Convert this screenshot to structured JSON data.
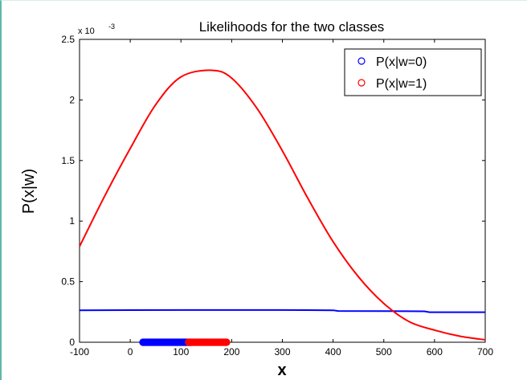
{
  "chart_data": {
    "type": "line",
    "title": "Likelihoods for the two classes",
    "xlabel": "x",
    "ylabel": "P(x|w)",
    "y_multiplier": "x 10",
    "y_exponent": "-3",
    "xlim": [
      -100,
      700
    ],
    "ylim": [
      0,
      2.5
    ],
    "x_ticks": [
      -100,
      0,
      100,
      200,
      300,
      400,
      500,
      600,
      700
    ],
    "x_tick_labels": [
      "-100",
      "0",
      "100",
      "200",
      "300",
      "400",
      "500",
      "600",
      "700"
    ],
    "y_ticks": [
      0,
      0.5,
      1,
      1.5,
      2,
      2.5
    ],
    "y_tick_labels": [
      "0",
      "0.5",
      "1",
      "1.5",
      "2",
      "2.5"
    ],
    "grid": false,
    "legend_position": "top-right",
    "series": [
      {
        "name": "P(x|w=0)",
        "color": "#0000ff",
        "marker": "circle",
        "x": [
          -100,
          0,
          100,
          200,
          300,
          400,
          410,
          500,
          580,
          590,
          700
        ],
        "y": [
          0.264,
          0.265,
          0.266,
          0.266,
          0.266,
          0.264,
          0.258,
          0.257,
          0.255,
          0.248,
          0.248
        ]
      },
      {
        "name": "P(x|w=1)",
        "color": "#ff0000",
        "marker": "circle",
        "x": [
          -100,
          -50,
          0,
          50,
          100,
          160,
          200,
          250,
          300,
          350,
          400,
          450,
          500,
          550,
          600,
          650,
          700
        ],
        "y": [
          0.79,
          1.21,
          1.6,
          1.96,
          2.19,
          2.245,
          2.18,
          1.93,
          1.58,
          1.19,
          0.83,
          0.54,
          0.32,
          0.17,
          0.1,
          0.05,
          0.02
        ]
      }
    ],
    "samples": [
      {
        "series": "P(x|w=0)",
        "color": "#0000ff",
        "x_range": [
          25,
          120
        ],
        "y": 0
      },
      {
        "series": "P(x|w=1)",
        "color": "#ff0000",
        "x_range": [
          115,
          190
        ],
        "y": 0
      }
    ]
  }
}
